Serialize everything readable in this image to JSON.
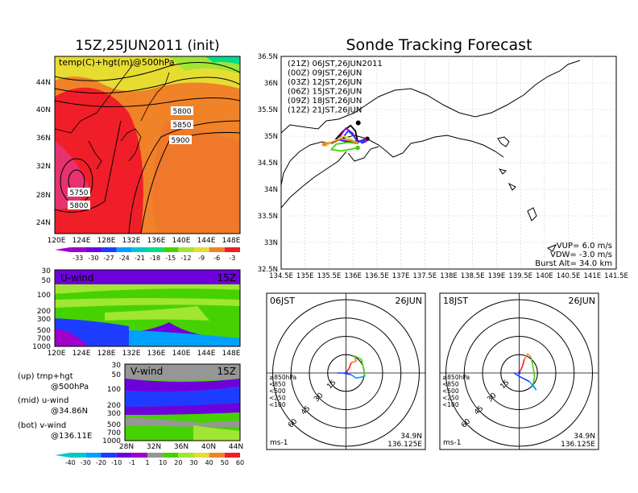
{
  "left": {
    "title": "15Z,25JUN2011 (init)",
    "top_map": {
      "label": "temp(C)+hgt(m)@500hPa",
      "lat_ticks": [
        "44N",
        "40N",
        "36N",
        "32N",
        "28N",
        "24N"
      ],
      "lon_ticks": [
        "120E",
        "124E",
        "128E",
        "132E",
        "136E",
        "140E",
        "144E",
        "148E"
      ],
      "contour_labels": [
        "5800",
        "5850",
        "5900",
        "5750",
        "5800"
      ],
      "colorbar_ticks": [
        "-33",
        "-30",
        "-27",
        "-24",
        "-21",
        "-18",
        "-15",
        "-12",
        "-9",
        "-6",
        "-3"
      ],
      "colors": [
        "#a000c8",
        "#6e00dc",
        "#1e3cff",
        "#00a0ff",
        "#00c8c8",
        "#00dc8c",
        "#46d200",
        "#a0e632",
        "#e6dc32",
        "#f08228",
        "#f01e28"
      ]
    },
    "u_panel": {
      "label": "U-wind",
      "time": "15Z",
      "p_ticks": [
        "30",
        "50",
        "100",
        "200",
        "300",
        "500",
        "700",
        "1000"
      ],
      "lon_ticks": [
        "120E",
        "124E",
        "128E",
        "132E",
        "136E",
        "140E",
        "144E",
        "148E"
      ]
    },
    "v_panel": {
      "label": "V-wind",
      "time": "15Z",
      "p_ticks": [
        "30",
        "50",
        "100",
        "200",
        "300",
        "500",
        "700",
        "1000"
      ],
      "lat_ticks": [
        "28N",
        "32N",
        "36N",
        "40N",
        "44N"
      ]
    },
    "notes": [
      "(up) tmp+hgt",
      "@500hPa",
      "(mid) u-wind",
      "@34.86N",
      "(bot) v-wind",
      "@136.11E"
    ],
    "wind_colorbar_ticks": [
      "-40",
      "-30",
      "-20",
      "-10",
      "-1",
      "1",
      "10",
      "20",
      "30",
      "40",
      "50",
      "60"
    ],
    "wind_colors": [
      "#00c8c8",
      "#00a0ff",
      "#1e3cff",
      "#6e00dc",
      "#a000c8",
      "#969696",
      "#46d200",
      "#a0e632",
      "#e6dc32",
      "#f08228",
      "#f01e28"
    ]
  },
  "right": {
    "title": "Sonde Tracking Forecast",
    "legend": [
      {
        "label": "(21Z)  06JST,26JUN2011",
        "color": "#000000"
      },
      {
        "label": "(00Z)  09JST,26JUN",
        "color": "#a000c8"
      },
      {
        "label": "(03Z)  12JST,26JUN",
        "color": "#1e3cff"
      },
      {
        "label": "(06Z)  15JST,26JUN",
        "color": "#46d200"
      },
      {
        "label": "(09Z)  18JST,26JUN",
        "color": "#e6dc32"
      },
      {
        "label": "(12Z)  21JST,26JUN",
        "color": "#f08228"
      }
    ],
    "lat_ticks": [
      "36.5N",
      "36N",
      "35.5N",
      "35N",
      "34.5N",
      "34N",
      "33.5N",
      "33N",
      "32.5N"
    ],
    "lon_ticks": [
      "134.5E",
      "135E",
      "135.5E",
      "136E",
      "136.5E",
      "137E",
      "137.5E",
      "138E",
      "138.5E",
      "139E",
      "139.5E",
      "140E",
      "140.5E",
      "141E",
      "141.5E"
    ],
    "info": [
      "VUP=  6.0  m/s",
      "VDW= -3.0  m/s",
      "Burst Alt= 34.0  km"
    ]
  },
  "chart_data": [
    {
      "type": "line",
      "title": "Sonde Tracking Forecast",
      "xlim": [
        134.5,
        141.5
      ],
      "ylim": [
        32.5,
        36.5
      ],
      "series": [
        {
          "name": "(21Z) 06JST,26JUN2011",
          "x": [
            136.11,
            136.05,
            135.95,
            135.8,
            135.65,
            135.85,
            136.15,
            136.3
          ],
          "y": [
            34.86,
            35.1,
            35.2,
            35.1,
            34.95,
            34.9,
            34.9,
            34.95
          ]
        },
        {
          "name": "(00Z) 09JST,26JUN",
          "x": [
            136.11,
            136.0,
            135.85,
            135.7,
            135.95,
            136.25
          ],
          "y": [
            34.86,
            35.05,
            35.15,
            34.95,
            34.9,
            34.92
          ]
        },
        {
          "name": "(03Z) 12JST,26JUN",
          "x": [
            136.11,
            136.02,
            135.9,
            135.75,
            135.9,
            136.2
          ],
          "y": [
            34.86,
            35.0,
            35.1,
            34.92,
            34.88,
            34.9
          ]
        },
        {
          "name": "(06Z) 15JST,26JUN",
          "x": [
            136.11,
            135.9,
            135.65,
            135.55,
            135.75,
            136.1
          ],
          "y": [
            34.86,
            34.88,
            34.85,
            34.75,
            34.72,
            34.78
          ]
        },
        {
          "name": "(09Z) 18JST,26JUN",
          "x": [
            136.11,
            135.95,
            135.8,
            135.6,
            135.45
          ],
          "y": [
            34.86,
            34.95,
            35.0,
            34.9,
            34.85
          ]
        },
        {
          "name": "(12Z) 21JST,26JUN",
          "x": [
            136.11,
            135.95,
            135.75,
            135.55,
            135.4
          ],
          "y": [
            34.86,
            34.92,
            34.95,
            34.88,
            34.85
          ]
        }
      ],
      "annotations": [
        "VUP= 6.0 m/s",
        "VDW= -3.0 m/s",
        "Burst Alt= 34.0 km"
      ]
    },
    {
      "type": "line",
      "title": "06JST 26JUN",
      "subtitle": "hodograph",
      "xlabel": "ms-1",
      "rings": [
        15,
        30,
        45,
        60
      ],
      "location": [
        "34.9N",
        "136.125E"
      ],
      "legend": [
        "≥850hPa",
        "<850",
        "<500",
        "<250",
        "<100"
      ],
      "legend_colors": [
        "#f01e28",
        "#f08228",
        "#46d200",
        "#00a0ff",
        "#1e3cff"
      ],
      "series": [
        {
          "name": "≥850hPa",
          "u": [
            0,
            2,
            3
          ],
          "v": [
            0,
            3,
            6
          ]
        },
        {
          "name": "<850",
          "u": [
            3,
            6,
            5
          ],
          "v": [
            6,
            7,
            10
          ]
        },
        {
          "name": "<500",
          "u": [
            5,
            9,
            10,
            11
          ],
          "v": [
            10,
            8,
            4,
            -2
          ]
        },
        {
          "name": "<250",
          "u": [
            11,
            6,
            3
          ],
          "v": [
            -2,
            -3,
            -1
          ]
        },
        {
          "name": "<100",
          "u": [
            3,
            -2,
            -5
          ],
          "v": [
            -1,
            0,
            0
          ]
        }
      ]
    },
    {
      "type": "line",
      "title": "18JST 26JUN",
      "subtitle": "hodograph",
      "xlabel": "ms-1",
      "rings": [
        15,
        30,
        45,
        60
      ],
      "location": [
        "34.9N",
        "136.125E"
      ],
      "legend": [
        "≥850hPa",
        "<850",
        "<500",
        "<250",
        "<100"
      ],
      "legend_colors": [
        "#f01e28",
        "#f08228",
        "#46d200",
        "#00a0ff",
        "#1e3cff"
      ],
      "series": [
        {
          "name": "≥850hPa",
          "u": [
            0,
            2,
            3
          ],
          "v": [
            0,
            4,
            8
          ]
        },
        {
          "name": "<850",
          "u": [
            3,
            5,
            7
          ],
          "v": [
            8,
            11,
            9
          ]
        },
        {
          "name": "<500",
          "u": [
            7,
            8,
            9,
            8
          ],
          "v": [
            9,
            4,
            -2,
            -7
          ]
        },
        {
          "name": "<250",
          "u": [
            8,
            10,
            6
          ],
          "v": [
            -7,
            -10,
            -5
          ]
        },
        {
          "name": "<100",
          "u": [
            6,
            0,
            -3
          ],
          "v": [
            -5,
            -2,
            0
          ]
        }
      ]
    }
  ],
  "hodo": [
    {
      "title": "06JST",
      "date": "26JUN",
      "rings": [
        "15",
        "30",
        "45",
        "60"
      ],
      "unit": "ms-1",
      "loc": [
        "34.9N",
        "136.125E"
      ],
      "legend": [
        "≥850hPa",
        "<850",
        "<500",
        "<250",
        "<100"
      ]
    },
    {
      "title": "18JST",
      "date": "26JUN",
      "rings": [
        "15",
        "30",
        "45",
        "60"
      ],
      "unit": "ms-1",
      "loc": [
        "34.9N",
        "136.125E"
      ],
      "legend": [
        "≥850hPa",
        "<850",
        "<500",
        "<250",
        "<100"
      ]
    }
  ]
}
